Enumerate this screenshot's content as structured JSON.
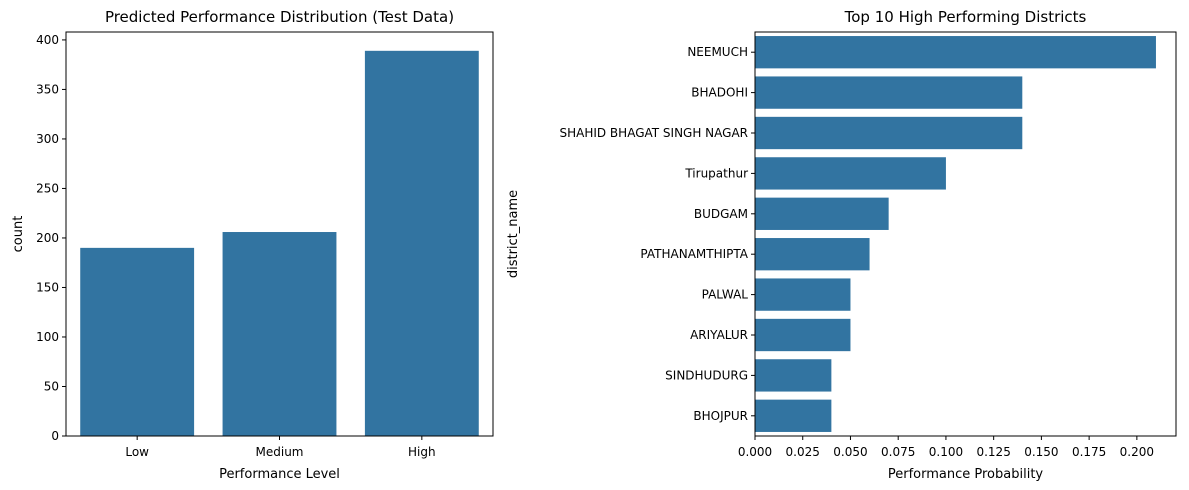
{
  "colors": {
    "bar": "#3274a1",
    "background": "#ffffff",
    "axis": "#000000"
  },
  "chart_data": [
    {
      "type": "bar",
      "orientation": "vertical",
      "title": "Predicted Performance Distribution (Test Data)",
      "xlabel": "Performance Level",
      "ylabel": "count",
      "categories": [
        "Low",
        "Medium",
        "High"
      ],
      "values": [
        190,
        206,
        389
      ],
      "ylim": [
        0,
        408
      ],
      "yticks": [
        0,
        50,
        100,
        150,
        200,
        250,
        300,
        350,
        400
      ],
      "ytick_labels": [
        "0",
        "50",
        "100",
        "150",
        "200",
        "250",
        "300",
        "350",
        "400"
      ],
      "grid": false,
      "legend": false
    },
    {
      "type": "bar",
      "orientation": "horizontal",
      "title": "Top 10 High Performing Districts",
      "xlabel": "Performance Probability",
      "ylabel": "district_name",
      "categories": [
        "NEEMUCH",
        "BHADOHI",
        "SHAHID BHAGAT SINGH NAGAR",
        "Tirupathur",
        "BUDGAM",
        "PATHANAMTHIPTA",
        "PALWAL",
        "ARIYALUR",
        "SINDHUDURG",
        "BHOJPUR"
      ],
      "values": [
        0.21,
        0.14,
        0.14,
        0.1,
        0.07,
        0.06,
        0.05,
        0.05,
        0.04,
        0.04
      ],
      "xlim": [
        0,
        0.2205
      ],
      "xticks": [
        0,
        0.025,
        0.05,
        0.075,
        0.1,
        0.125,
        0.15,
        0.175,
        0.2
      ],
      "xtick_labels": [
        "0.000",
        "0.025",
        "0.050",
        "0.075",
        "0.100",
        "0.125",
        "0.150",
        "0.175",
        "0.200"
      ],
      "grid": false,
      "legend": false
    }
  ]
}
